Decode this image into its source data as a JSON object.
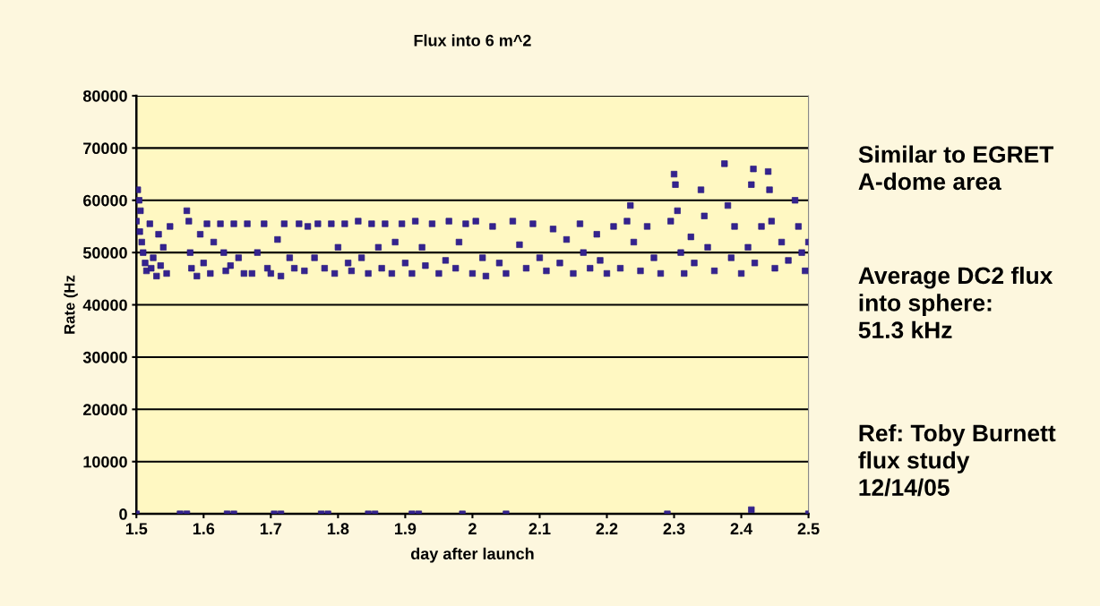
{
  "chart_data": {
    "type": "scatter",
    "title": "Flux into 6 m^2",
    "xlabel": "day after launch",
    "ylabel": "Rate (Hz",
    "xlim": [
      1.5,
      2.5
    ],
    "xticks": [
      1.5,
      1.6,
      1.7,
      1.8,
      1.9,
      2,
      2.1,
      2.2,
      2.3,
      2.4,
      2.5
    ],
    "ylim": [
      0,
      80000
    ],
    "yticks": [
      0,
      10000,
      20000,
      30000,
      40000,
      50000,
      60000,
      70000,
      80000
    ],
    "grid": "y",
    "marker": "square",
    "annotations": [
      "Similar to EGRET\nA-dome area",
      "Average DC2 flux\ninto sphere:\n51.3 kHz",
      "Ref: Toby Burnett\nflux study\n12/14/05"
    ],
    "series": [
      {
        "color": "#34238f",
        "x": [
          1.5,
          1.502,
          1.504,
          1.506,
          1.505,
          1.508,
          1.51,
          1.513,
          1.515,
          1.52,
          1.522,
          1.525,
          1.53,
          1.533,
          1.536,
          1.54,
          1.545,
          1.55,
          1.575,
          1.578,
          1.58,
          1.582,
          1.59,
          1.595,
          1.6,
          1.605,
          1.61,
          1.615,
          1.625,
          1.63,
          1.633,
          1.64,
          1.645,
          1.652,
          1.66,
          1.665,
          1.672,
          1.68,
          1.69,
          1.695,
          1.7,
          1.71,
          1.715,
          1.72,
          1.728,
          1.735,
          1.742,
          1.75,
          1.755,
          1.765,
          1.77,
          1.78,
          1.79,
          1.795,
          1.8,
          1.81,
          1.815,
          1.82,
          1.83,
          1.835,
          1.845,
          1.85,
          1.86,
          1.865,
          1.87,
          1.88,
          1.885,
          1.895,
          1.9,
          1.91,
          1.915,
          1.925,
          1.93,
          1.94,
          1.95,
          1.96,
          1.965,
          1.975,
          1.98,
          1.99,
          2.0,
          2.005,
          2.015,
          2.02,
          2.03,
          2.04,
          2.05,
          2.06,
          2.07,
          2.08,
          2.09,
          2.1,
          2.11,
          2.12,
          2.13,
          2.14,
          2.15,
          2.16,
          2.165,
          2.175,
          2.185,
          2.19,
          2.2,
          2.21,
          2.22,
          2.23,
          2.235,
          2.24,
          2.25,
          2.26,
          2.27,
          2.28,
          2.295,
          2.3,
          2.302,
          2.305,
          2.31,
          2.315,
          2.325,
          2.33,
          2.34,
          2.345,
          2.35,
          2.36,
          2.375,
          2.38,
          2.385,
          2.39,
          2.4,
          2.41,
          2.415,
          2.418,
          2.42,
          2.43,
          2.44,
          2.442,
          2.445,
          2.45,
          2.46,
          2.47,
          2.48,
          2.485,
          2.49,
          2.495,
          2.5,
          1.5,
          1.565,
          1.575,
          1.635,
          1.645,
          1.705,
          1.715,
          1.775,
          1.785,
          1.845,
          1.855,
          1.91,
          1.92,
          1.985,
          2.05,
          2.29,
          2.415,
          2.5
        ],
        "values": [
          56000,
          62000,
          60000,
          58000,
          54000,
          52000,
          50000,
          48000,
          46500,
          55500,
          47000,
          49000,
          45500,
          53500,
          47500,
          51000,
          46000,
          55000,
          58000,
          56000,
          50000,
          47000,
          45500,
          53500,
          48000,
          55500,
          46000,
          52000,
          55500,
          50000,
          46500,
          47500,
          55500,
          49000,
          46000,
          55500,
          46000,
          50000,
          55500,
          47000,
          46000,
          52500,
          45500,
          55500,
          49000,
          47000,
          55500,
          46500,
          55000,
          49000,
          55500,
          47000,
          55500,
          46000,
          51000,
          55500,
          48000,
          46500,
          56000,
          49000,
          46000,
          55500,
          51000,
          47000,
          55500,
          46000,
          52000,
          55500,
          48000,
          46000,
          56000,
          51000,
          47500,
          55500,
          46000,
          48500,
          56000,
          47000,
          52000,
          55500,
          46000,
          56000,
          49000,
          45500,
          55000,
          48000,
          46000,
          56000,
          51500,
          47000,
          55500,
          49000,
          46500,
          54500,
          48000,
          52500,
          46000,
          55500,
          50000,
          47000,
          53500,
          48500,
          46000,
          55000,
          47000,
          56000,
          59000,
          52000,
          46500,
          55000,
          49000,
          46000,
          56000,
          65000,
          63000,
          58000,
          50000,
          46000,
          53000,
          48000,
          62000,
          57000,
          51000,
          46500,
          67000,
          59000,
          49000,
          55000,
          46000,
          51000,
          63000,
          66000,
          48000,
          55000,
          65500,
          62000,
          56000,
          47000,
          52000,
          48500,
          60000,
          55000,
          50000,
          46500,
          52000,
          0,
          0,
          0,
          0,
          0,
          0,
          0,
          0,
          0,
          0,
          0,
          0,
          0,
          0,
          0,
          0,
          800,
          0
        ]
      }
    ]
  }
}
